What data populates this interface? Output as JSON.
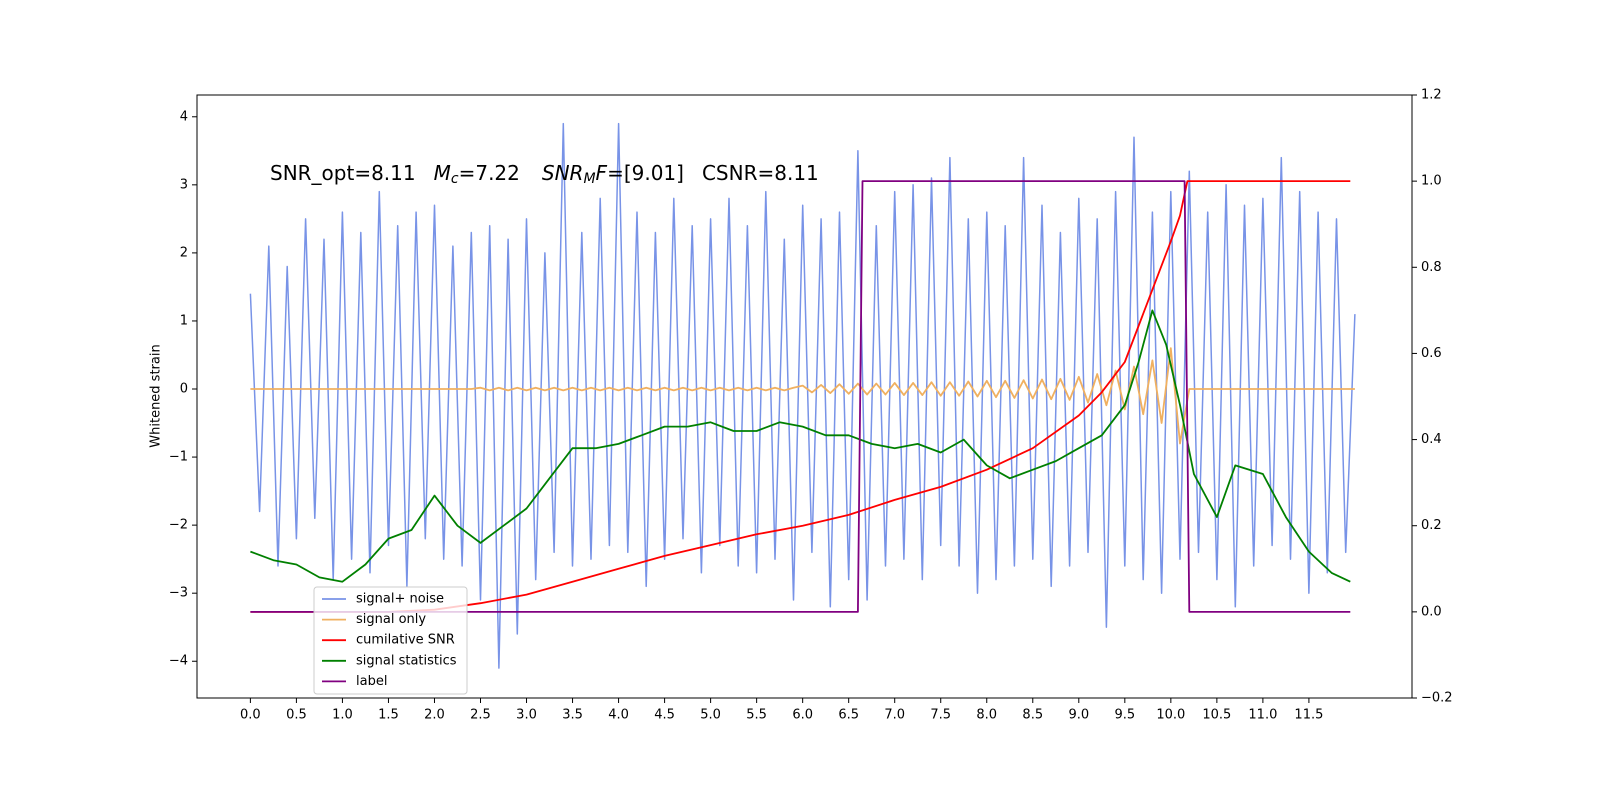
{
  "chart_data": {
    "type": "line",
    "y_label": "Whitened strain",
    "annotation": [
      {
        "text": "SNR_opt=8.11"
      },
      {
        "text": "M",
        "style": "italic"
      },
      {
        "text": "c",
        "style": "italic-sub"
      },
      {
        "text": "=7.22"
      },
      {
        "text": "SNR",
        "style": "italic"
      },
      {
        "text": "M",
        "style": "italic-sub"
      },
      {
        "text": "F",
        "style": "italic"
      },
      {
        "text": "=[9.01]"
      },
      {
        "text": "CSNR=8.11"
      }
    ],
    "xlim": [
      -0.58,
      12.62
    ],
    "ylim": [
      -4.54,
      4.32
    ],
    "y2lim": [
      -0.2,
      1.2
    ],
    "xticks": [
      {
        "value": 0,
        "label": "0.0"
      },
      0.5,
      {
        "value": 1,
        "label": "1.0"
      },
      1.5,
      {
        "value": 2,
        "label": "2.0"
      },
      2.5,
      {
        "value": 3,
        "label": "3.0"
      },
      3.5,
      {
        "value": 4,
        "label": "4.0"
      },
      4.5,
      {
        "value": 5,
        "label": "5.0"
      },
      5.5,
      {
        "value": 6,
        "label": "6.0"
      },
      6.5,
      {
        "value": 7,
        "label": "7.0"
      },
      7.5,
      {
        "value": 8,
        "label": "8.0"
      },
      8.5,
      {
        "value": 9,
        "label": "9.0"
      },
      9.5,
      {
        "value": 10,
        "label": "10.0"
      },
      10.5,
      {
        "value": 11,
        "label": "11.0"
      },
      11.5
    ],
    "yticks": [
      {
        "value": -4,
        "label": "−4"
      },
      {
        "value": -3,
        "label": "−3"
      },
      {
        "value": -2,
        "label": "−2"
      },
      {
        "value": -1,
        "label": "−1"
      },
      0,
      1,
      2,
      3,
      4
    ],
    "y2ticks": [
      {
        "value": -0.2,
        "label": "−0.2"
      },
      {
        "value": 0,
        "label": "0.0"
      },
      0.2,
      0.4,
      0.6,
      0.8,
      {
        "value": 1,
        "label": "1.0"
      },
      1.2
    ],
    "legend": "lower left",
    "x": [
      0,
      0.1,
      0.2,
      0.3,
      0.4,
      0.5,
      0.6,
      0.7,
      0.8,
      0.9,
      1,
      1.1,
      1.2,
      1.3,
      1.4,
      1.5,
      1.6,
      1.7,
      1.8,
      1.9,
      2,
      2.1,
      2.2,
      2.3,
      2.4,
      2.5,
      2.6,
      2.7,
      2.8,
      2.9,
      3,
      3.1,
      3.2,
      3.3,
      3.4,
      3.5,
      3.6,
      3.7,
      3.8,
      3.9,
      4,
      4.1,
      4.2,
      4.3,
      4.4,
      4.5,
      4.6,
      4.7,
      4.8,
      4.9,
      5,
      5.1,
      5.2,
      5.3,
      5.4,
      5.5,
      5.6,
      5.7,
      5.8,
      5.9,
      6,
      6.1,
      6.2,
      6.3,
      6.4,
      6.5,
      6.6,
      6.7,
      6.8,
      6.9,
      7,
      7.1,
      7.2,
      7.3,
      7.4,
      7.5,
      7.6,
      7.7,
      7.8,
      7.9,
      8,
      8.1,
      8.2,
      8.3,
      8.4,
      8.5,
      8.6,
      8.7,
      8.8,
      8.9,
      9,
      9.1,
      9.2,
      9.3,
      9.4,
      9.5,
      9.6,
      9.7,
      9.8,
      9.9,
      10,
      10.1,
      10.2,
      10.3,
      10.4,
      10.5,
      10.6,
      10.7,
      10.8,
      10.9,
      11,
      11.1,
      11.2,
      11.3,
      11.4,
      11.5,
      11.6,
      11.7,
      11.8,
      11.9,
      12
    ],
    "series": [
      {
        "name": "signal+ noise",
        "color": "#7893e7",
        "values": [
          1.4,
          -1.8,
          2.1,
          -2.6,
          1.8,
          -2.2,
          2.5,
          -1.9,
          2.2,
          -2.8,
          2.6,
          -2.5,
          2.3,
          -2.7,
          2.9,
          -2.3,
          2.4,
          -2.9,
          2.6,
          -2.2,
          2.7,
          -2.5,
          2.1,
          -2.6,
          2.3,
          -3.1,
          2.4,
          -4.1,
          2.2,
          -3.6,
          2.5,
          -2.8,
          2.0,
          -2.4,
          3.9,
          -2.6,
          2.3,
          -2.5,
          2.8,
          -2.3,
          3.9,
          -2.4,
          2.6,
          -2.9,
          2.3,
          -2.5,
          2.8,
          -2.2,
          2.4,
          -2.7,
          2.5,
          -2.3,
          2.8,
          -2.6,
          2.4,
          -2.7,
          2.9,
          -2.5,
          2.2,
          -3.1,
          2.7,
          -2.4,
          2.5,
          -3.2,
          2.6,
          -2.8,
          3.5,
          -3.1,
          2.4,
          -2.6,
          2.9,
          -2.5,
          3.0,
          -2.8,
          3.1,
          -2.3,
          3.4,
          -2.6,
          2.5,
          -3.0,
          2.6,
          -2.8,
          2.4,
          -2.6,
          3.4,
          -2.5,
          2.7,
          -2.9,
          2.3,
          -2.6,
          2.8,
          -2.4,
          2.5,
          -3.5,
          2.9,
          -2.6,
          3.7,
          -2.8,
          2.6,
          -3.0,
          2.9,
          -2.5,
          3.2,
          -2.4,
          2.6,
          -2.8,
          3.0,
          -3.2,
          2.7,
          -2.6,
          2.8,
          -2.3,
          3.4,
          -2.5,
          2.9,
          -3.0,
          2.6,
          -2.7,
          2.5,
          -2.4,
          1.1
        ]
      },
      {
        "name": "signal only",
        "color": "#f0b060",
        "values": [
          0,
          0,
          0,
          0,
          0,
          0,
          0,
          0,
          0,
          0,
          0,
          0,
          0,
          0,
          0,
          0,
          0,
          0,
          0,
          0,
          0,
          0,
          0,
          0,
          0,
          0.02,
          -0.02,
          0.02,
          -0.02,
          0.02,
          -0.02,
          0.02,
          -0.02,
          0.02,
          -0.02,
          0.02,
          -0.02,
          0.02,
          -0.02,
          0.02,
          -0.02,
          0.02,
          -0.02,
          0.02,
          -0.02,
          0.02,
          -0.02,
          0.02,
          -0.02,
          0.02,
          -0.02,
          0.02,
          -0.02,
          0.02,
          -0.02,
          0.02,
          -0.02,
          0.02,
          -0.02,
          0.02,
          0.05,
          -0.05,
          0.06,
          -0.06,
          0.07,
          -0.07,
          0.08,
          -0.08,
          0.08,
          -0.08,
          0.09,
          -0.09,
          0.09,
          -0.09,
          0.1,
          -0.1,
          0.1,
          -0.1,
          0.11,
          -0.11,
          0.12,
          -0.12,
          0.12,
          -0.13,
          0.13,
          -0.14,
          0.14,
          -0.15,
          0.15,
          -0.16,
          0.18,
          -0.2,
          0.22,
          -0.24,
          0.27,
          -0.3,
          0.33,
          -0.37,
          0.42,
          -0.5,
          0.6,
          -0.8,
          0,
          0,
          0,
          0,
          0,
          0,
          0,
          0,
          0,
          0,
          0,
          0,
          0,
          0,
          0,
          0,
          0,
          0,
          0
        ]
      },
      {
        "name": "cumilative SNR",
        "color": "#ff0000",
        "axis": "y2",
        "x": [
          0,
          1,
          1.5,
          2,
          2.5,
          3,
          3.5,
          4,
          4.5,
          5,
          5.5,
          6,
          6.5,
          7,
          7.5,
          8,
          8.5,
          9,
          9.25,
          9.5,
          9.75,
          10,
          10.1,
          10.18,
          11.95
        ],
        "values": [
          0,
          0,
          0,
          0.005,
          0.02,
          0.04,
          0.07,
          0.1,
          0.13,
          0.155,
          0.18,
          0.2,
          0.225,
          0.26,
          0.29,
          0.33,
          0.38,
          0.456,
          0.51,
          0.58,
          0.72,
          0.86,
          0.92,
          1.0,
          1.0
        ]
      },
      {
        "name": "signal statistics",
        "color": "#008000",
        "axis": "y2",
        "x": [
          0,
          0.25,
          0.5,
          0.75,
          1,
          1.25,
          1.5,
          1.75,
          2,
          2.25,
          2.5,
          2.75,
          3,
          3.25,
          3.5,
          3.75,
          4,
          4.25,
          4.5,
          4.75,
          5,
          5.25,
          5.5,
          5.75,
          6,
          6.25,
          6.5,
          6.75,
          7,
          7.25,
          7.5,
          7.75,
          8,
          8.25,
          8.5,
          8.75,
          9,
          9.25,
          9.5,
          9.65,
          9.8,
          9.95,
          10.1,
          10.25,
          10.5,
          10.7,
          11,
          11.25,
          11.5,
          11.75,
          11.95
        ],
        "values": [
          0.14,
          0.12,
          0.11,
          0.08,
          0.07,
          0.11,
          0.17,
          0.19,
          0.27,
          0.2,
          0.16,
          0.2,
          0.24,
          0.31,
          0.38,
          0.38,
          0.39,
          0.41,
          0.43,
          0.43,
          0.44,
          0.42,
          0.42,
          0.44,
          0.43,
          0.41,
          0.41,
          0.39,
          0.38,
          0.39,
          0.37,
          0.4,
          0.34,
          0.31,
          0.33,
          0.35,
          0.38,
          0.41,
          0.48,
          0.58,
          0.7,
          0.62,
          0.48,
          0.32,
          0.22,
          0.34,
          0.32,
          0.22,
          0.14,
          0.09,
          0.07
        ]
      },
      {
        "name": "label",
        "color": "#800080",
        "axis": "y2",
        "x": [
          0,
          6.6,
          6.65,
          10.15,
          10.2,
          11.95
        ],
        "values": [
          0,
          0,
          1,
          1,
          0,
          0
        ]
      }
    ]
  }
}
